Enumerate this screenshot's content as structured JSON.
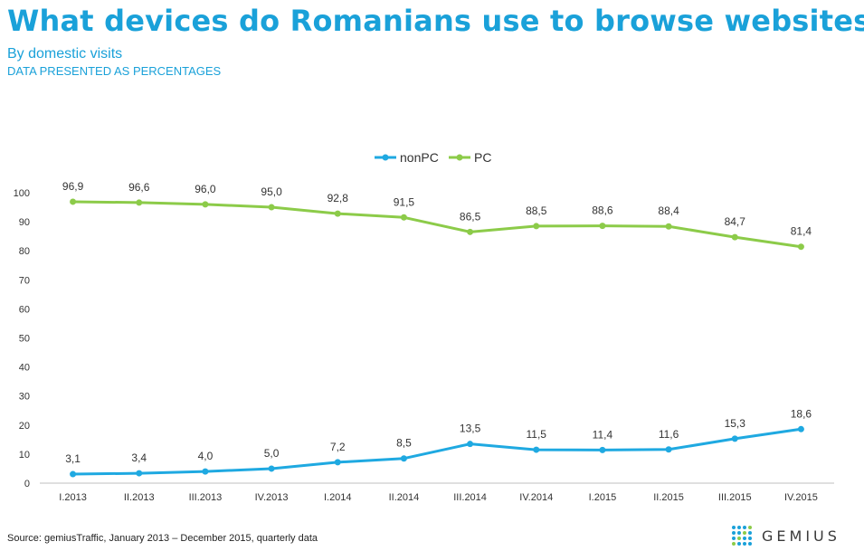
{
  "header": {
    "title": "What devices do Romanians use to browse websites?",
    "subtitle": "By domestic visits",
    "note": "DATA PRESENTED AS PERCENTAGES"
  },
  "footer": {
    "source": "Source: gemiusTraffic, January 2013 – December 2015, quarterly data",
    "logo_text": "GEMIUS"
  },
  "colors": {
    "title": "#1aa1d9",
    "nonPC": "#1fa9e1",
    "PC": "#8ccb49",
    "axis": "#bfbfbf",
    "text": "#333333"
  },
  "chart_data": {
    "type": "line",
    "title": "",
    "xlabel": "",
    "ylabel": "",
    "ylim": [
      0,
      100
    ],
    "yticks": [
      0,
      10,
      20,
      30,
      40,
      50,
      60,
      70,
      80,
      90,
      100
    ],
    "grid": false,
    "legend_position": "top-center",
    "categories": [
      "I.2013",
      "II.2013",
      "III.2013",
      "IV.2013",
      "I.2014",
      "II.2014",
      "III.2014",
      "IV.2014",
      "I.2015",
      "II.2015",
      "III.2015",
      "IV.2015"
    ],
    "series": [
      {
        "name": "nonPC",
        "color": "#1fa9e1",
        "values": [
          3.1,
          3.4,
          4.0,
          5.0,
          7.2,
          8.5,
          13.5,
          11.5,
          11.4,
          11.6,
          15.3,
          18.6
        ],
        "labels": [
          "3,1",
          "3,4",
          "4,0",
          "5,0",
          "7,2",
          "8,5",
          "13,5",
          "11,5",
          "11,4",
          "11,6",
          "15,3",
          "18,6"
        ]
      },
      {
        "name": "PC",
        "color": "#8ccb49",
        "values": [
          96.9,
          96.6,
          96.0,
          95.0,
          92.8,
          91.5,
          86.5,
          88.5,
          88.6,
          88.4,
          84.7,
          81.4
        ],
        "labels": [
          "96,9",
          "96,6",
          "96,0",
          "95,0",
          "92,8",
          "91,5",
          "86,5",
          "88,5",
          "88,6",
          "88,4",
          "84,7",
          "81,4"
        ]
      }
    ]
  }
}
